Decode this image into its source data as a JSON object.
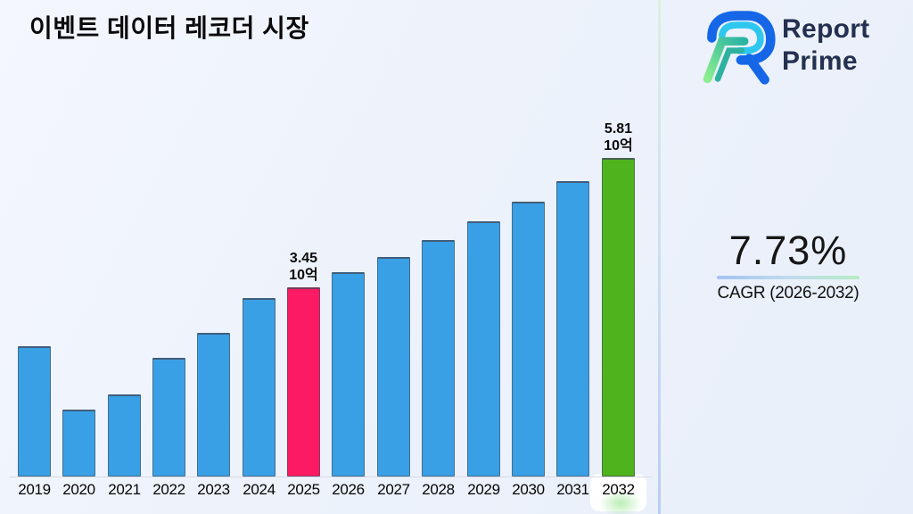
{
  "header": {
    "title": "이벤트 데이터 레코더 시장"
  },
  "logo": {
    "line1": "Report",
    "line2": "Prime",
    "text_color": "#24304f"
  },
  "cagr_panel": {
    "value": "7.73%",
    "label": "CAGR (2026-2032)"
  },
  "chart_data": {
    "type": "bar",
    "title": "이벤트 데이터 레코더 시장",
    "categories": [
      "2019",
      "2020",
      "2021",
      "2022",
      "2023",
      "2024",
      "2025",
      "2026",
      "2027",
      "2028",
      "2029",
      "2030",
      "2031",
      "2032"
    ],
    "values": [
      2.37,
      1.22,
      1.49,
      2.16,
      2.62,
      3.26,
      3.45,
      3.72,
      4.0,
      4.31,
      4.65,
      5.01,
      5.39,
      5.81
    ],
    "unit": "10억",
    "bar_color": "#3AA0E6",
    "highlights": {
      "2025": "#FB1A63",
      "2032": "#4FB31E"
    },
    "value_labels": [
      {
        "year": "2025",
        "value": "3.45",
        "unit": "10억"
      },
      {
        "year": "2032",
        "value": "5.81",
        "unit": "10억"
      }
    ],
    "xlabel": "",
    "ylabel": "",
    "ylim": [
      0,
      6.2
    ],
    "grid": false,
    "legend": "none"
  }
}
